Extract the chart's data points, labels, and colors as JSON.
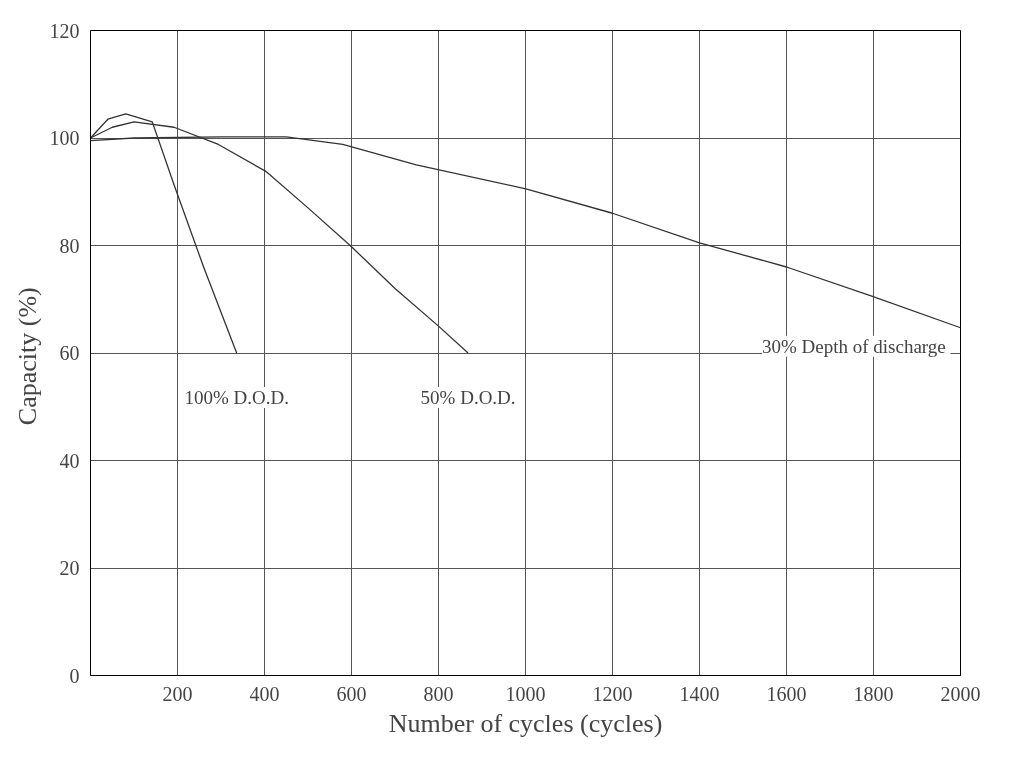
{
  "chart_data": {
    "type": "line",
    "xlabel": "Number of cycles (cycles)",
    "ylabel": "Capacity  (%)",
    "xlim": [
      0,
      2000
    ],
    "ylim": [
      0,
      120
    ],
    "xticks": [
      {
        "value": 0,
        "label": null
      },
      200,
      400,
      600,
      800,
      1000,
      1200,
      1400,
      1600,
      1800,
      2000
    ],
    "yticks": [
      0,
      20,
      40,
      60,
      80,
      100,
      120
    ],
    "grid": true,
    "marker": "none",
    "line_style": "solid",
    "series": [
      {
        "color": "#333333",
        "x": [
          0,
          40,
          81,
          142,
          192,
          260,
          336
        ],
        "values": [
          100,
          103.5,
          104.5,
          103,
          91.3,
          76,
          60
        ]
      },
      {
        "color": "#333333",
        "x": [
          0,
          50,
          100,
          192,
          294,
          403,
          500,
          597,
          700,
          800,
          868
        ],
        "values": [
          100,
          102,
          103,
          102,
          98.8,
          93.8,
          87,
          80,
          72,
          65,
          60
        ]
      },
      {
        "color": "#333333",
        "x": [
          0,
          100,
          300,
          450,
          580,
          749,
          1003,
          1200,
          1400,
          1600,
          1796,
          2000
        ],
        "values": [
          99.5,
          100,
          100.2,
          100.2,
          98.8,
          95,
          90.5,
          86,
          80.5,
          76,
          70.6,
          64.7
        ]
      }
    ],
    "annotations": [
      "100% D.O.D.",
      "50% D.O.D.",
      "30% Depth of  discharge"
    ]
  }
}
